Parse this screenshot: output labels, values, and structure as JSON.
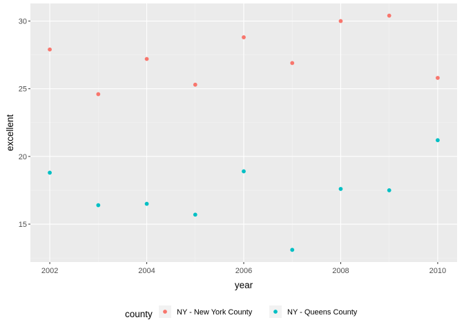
{
  "chart_data": {
    "type": "scatter",
    "xlabel": "year",
    "ylabel": "excellent",
    "xlim": [
      2001.6,
      2010.4
    ],
    "ylim": [
      12.2,
      31.3
    ],
    "x_ticks": [
      2002,
      2004,
      2006,
      2008,
      2010
    ],
    "x_minor": [
      2003,
      2005,
      2007,
      2009
    ],
    "y_ticks": [
      15,
      20,
      25,
      30
    ],
    "y_minor": [
      12.5,
      17.5,
      22.5,
      27.5
    ],
    "grid": true,
    "legend_position": "bottom",
    "legend_title": "county",
    "series": [
      {
        "name": "NY - New York County",
        "color": "#F8766D",
        "x": [
          2002,
          2003,
          2004,
          2005,
          2006,
          2007,
          2008,
          2009,
          2010
        ],
        "y": [
          27.9,
          24.6,
          27.2,
          25.3,
          28.8,
          26.9,
          30.0,
          30.4,
          25.8
        ]
      },
      {
        "name": "NY - Queens County",
        "color": "#00BFC4",
        "x": [
          2002,
          2003,
          2004,
          2005,
          2006,
          2007,
          2008,
          2009,
          2010
        ],
        "y": [
          18.8,
          16.4,
          16.5,
          15.7,
          18.9,
          13.1,
          17.6,
          17.5,
          21.2
        ]
      }
    ]
  },
  "colors": {
    "panel_background": "#EBEBEB",
    "grid_major": "#FFFFFF",
    "tick_text": "#4D4D4D"
  }
}
